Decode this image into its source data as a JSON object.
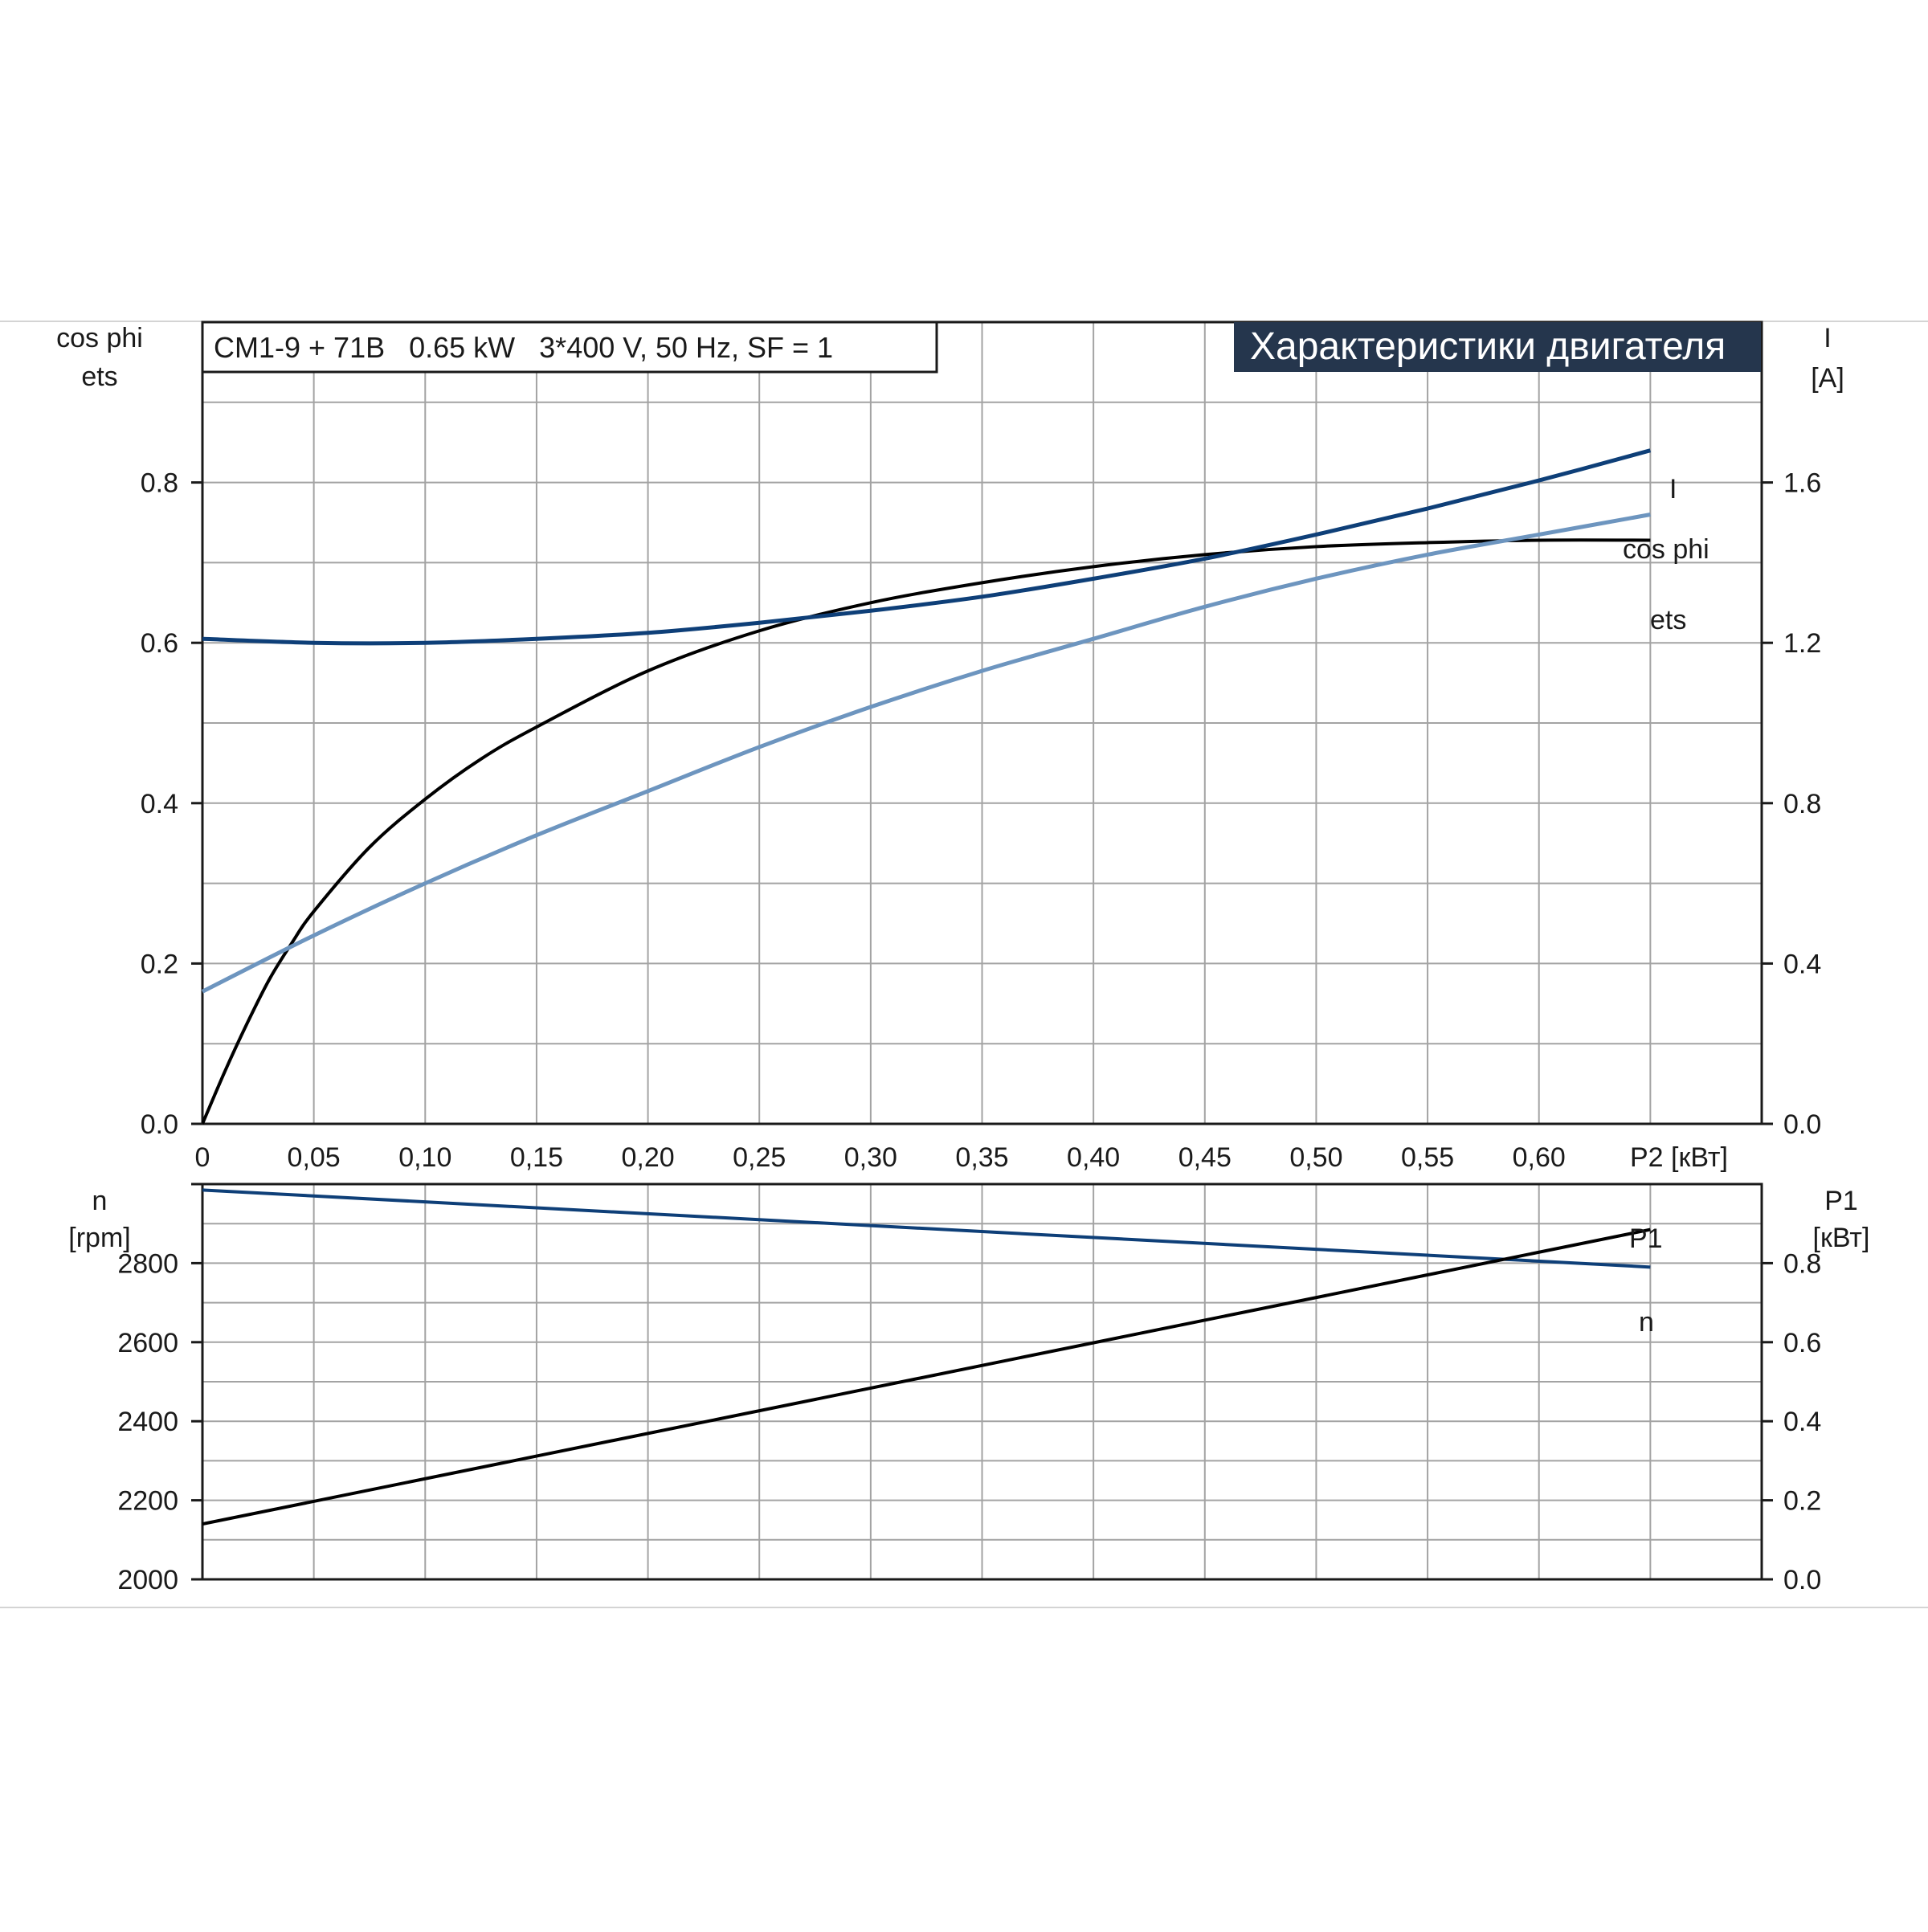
{
  "colors": {
    "dark_blue": "#0e3f78",
    "light_blue": "#6d95bf",
    "black": "#000000",
    "title_bg": "#25364d",
    "grid": "#a3a3a3"
  },
  "chart_data": [
    {
      "type": "line",
      "title": "Характеристики двигателя",
      "subtitle": "CM1-9 + 71B   0.65 kW   3*400 V, 50 Hz, SF = 1",
      "xlabel": "P2 [кВт]",
      "xlim": [
        0,
        0.7
      ],
      "x_ticks": [
        0,
        0.05,
        0.1,
        0.15,
        0.2,
        0.25,
        0.3,
        0.35,
        0.4,
        0.45,
        0.5,
        0.55,
        0.6
      ],
      "x_tick_labels": [
        "0",
        "0,05",
        "0,10",
        "0,15",
        "0,20",
        "0,25",
        "0,30",
        "0,35",
        "0,40",
        "0,45",
        "0,50",
        "0,55",
        "0,60"
      ],
      "y_left": {
        "label_lines": [
          "cos phi",
          "ets"
        ],
        "lim": [
          0,
          1.0
        ],
        "ticks": [
          0.0,
          0.2,
          0.4,
          0.6,
          0.8
        ],
        "tick_labels": [
          "0.0",
          "0.2",
          "0.4",
          "0.6",
          "0.8"
        ]
      },
      "y_right": {
        "label_lines": [
          "I",
          "[A]"
        ],
        "lim": [
          0,
          2.0
        ],
        "ticks": [
          0.0,
          0.4,
          0.8,
          1.2,
          1.6
        ],
        "tick_labels": [
          "0.0",
          "0.4",
          "0.8",
          "1.2",
          "1.6"
        ]
      },
      "grid": true,
      "series": [
        {
          "name": "I",
          "axis": "right",
          "color": "dark_blue",
          "x": [
            0,
            0.05,
            0.1,
            0.15,
            0.2,
            0.25,
            0.3,
            0.35,
            0.4,
            0.45,
            0.5,
            0.55,
            0.6,
            0.65
          ],
          "y": [
            1.21,
            1.2,
            1.2,
            1.21,
            1.225,
            1.25,
            1.28,
            1.315,
            1.36,
            1.41,
            1.47,
            1.535,
            1.605,
            1.68
          ]
        },
        {
          "name": "cos phi",
          "axis": "left",
          "color": "light_blue",
          "x": [
            0,
            0.05,
            0.1,
            0.15,
            0.2,
            0.25,
            0.3,
            0.35,
            0.4,
            0.45,
            0.5,
            0.55,
            0.6,
            0.65
          ],
          "y": [
            0.165,
            0.235,
            0.3,
            0.36,
            0.415,
            0.47,
            0.52,
            0.565,
            0.605,
            0.645,
            0.68,
            0.71,
            0.735,
            0.76
          ]
        },
        {
          "name": "ets",
          "axis": "left",
          "color": "black",
          "x": [
            0,
            0.01,
            0.02,
            0.03,
            0.04,
            0.05,
            0.075,
            0.1,
            0.125,
            0.15,
            0.2,
            0.25,
            0.3,
            0.35,
            0.4,
            0.45,
            0.5,
            0.55,
            0.6,
            0.65
          ],
          "y": [
            0.0,
            0.065,
            0.125,
            0.18,
            0.225,
            0.265,
            0.345,
            0.405,
            0.455,
            0.495,
            0.565,
            0.615,
            0.65,
            0.675,
            0.695,
            0.71,
            0.72,
            0.725,
            0.728,
            0.728
          ]
        }
      ]
    },
    {
      "type": "line",
      "xlim": [
        0,
        0.7
      ],
      "x_ticks": [
        0,
        0.05,
        0.1,
        0.15,
        0.2,
        0.25,
        0.3,
        0.35,
        0.4,
        0.45,
        0.5,
        0.55,
        0.6
      ],
      "y_left": {
        "label_lines": [
          "n",
          "[rpm]"
        ],
        "lim": [
          2000,
          3000
        ],
        "ticks": [
          2000,
          2200,
          2400,
          2600,
          2800
        ],
        "tick_labels": [
          "2000",
          "2200",
          "2400",
          "2600",
          "2800"
        ],
        "grid_ticks": [
          2000,
          2100,
          2200,
          2300,
          2400,
          2500,
          2600,
          2700,
          2800,
          2900,
          3000
        ]
      },
      "y_right": {
        "label_lines": [
          "P1",
          "[кВт]"
        ],
        "lim": [
          0,
          1.0
        ],
        "ticks": [
          0.0,
          0.2,
          0.4,
          0.6,
          0.8
        ],
        "tick_labels": [
          "0.0",
          "0.2",
          "0.4",
          "0.6",
          "0.8"
        ]
      },
      "grid": true,
      "series": [
        {
          "name": "n",
          "axis": "left",
          "color": "dark_blue",
          "x": [
            0,
            0.65
          ],
          "y": [
            2985,
            2790
          ]
        },
        {
          "name": "P1",
          "axis": "right",
          "color": "black",
          "x": [
            0,
            0.65
          ],
          "y": [
            0.14,
            0.885
          ]
        }
      ]
    }
  ]
}
